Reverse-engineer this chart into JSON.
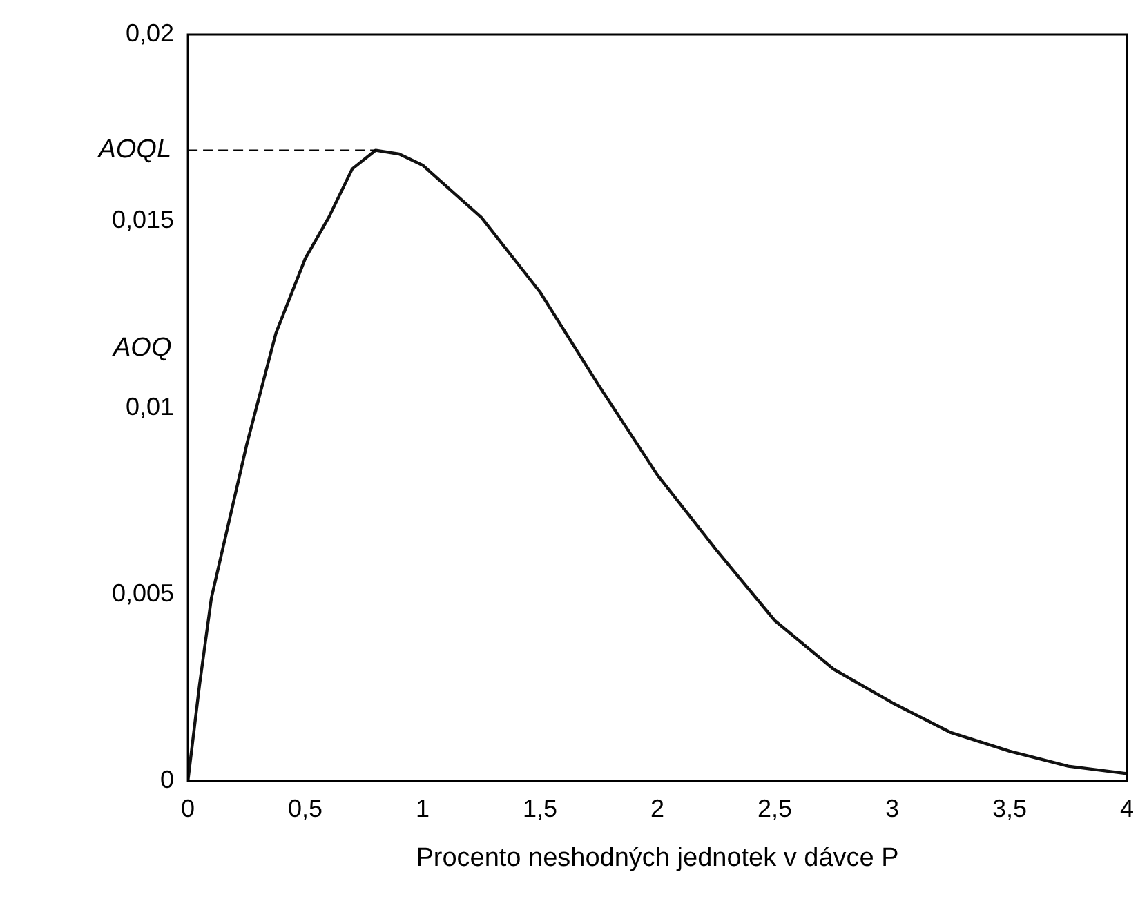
{
  "chart_data": {
    "type": "line",
    "xlabel": "Procento neshodných jednotek v dávce P",
    "ylabel": "AOQ",
    "x": [
      0,
      0.05,
      0.1,
      0.25,
      0.375,
      0.5,
      0.6,
      0.7,
      0.8,
      0.9,
      1,
      1.25,
      1.5,
      1.75,
      2,
      2.25,
      2.5,
      2.75,
      3,
      3.25,
      3.5,
      3.75,
      4
    ],
    "series": [
      {
        "color": "#111111",
        "values": [
          0,
          0.0026,
          0.0049,
          0.009,
          0.012,
          0.014,
          0.0151,
          0.0164,
          0.0169,
          0.0168,
          0.0165,
          0.0151,
          0.0131,
          0.0106,
          0.0082,
          0.0062,
          0.0043,
          0.003,
          0.0021,
          0.0013,
          0.0008,
          0.0004,
          0.0002
        ]
      }
    ],
    "xlim": [
      0,
      4
    ],
    "ylim": [
      0,
      0.02
    ],
    "xticks": [
      0,
      {
        "value": 0.5,
        "label": "0,5"
      },
      1,
      {
        "value": 1.5,
        "label": "1,5"
      },
      2,
      {
        "value": 2.5,
        "label": "2,5"
      },
      3,
      {
        "value": 3.5,
        "label": "3,5"
      },
      4
    ],
    "yticks": [
      0,
      {
        "value": 0.005,
        "label": "0,005"
      },
      {
        "value": 0.01,
        "label": "0,01"
      },
      {
        "value": 0.015,
        "label": "0,015"
      },
      {
        "value": 0.02,
        "label": "0,02"
      }
    ],
    "ref_lines": [
      {
        "axis": "y",
        "value": 0.0169,
        "label": "AOQL",
        "line_style": "dashed"
      }
    ],
    "grid": false,
    "legend": false,
    "marker": "none",
    "line_style": "solid"
  }
}
